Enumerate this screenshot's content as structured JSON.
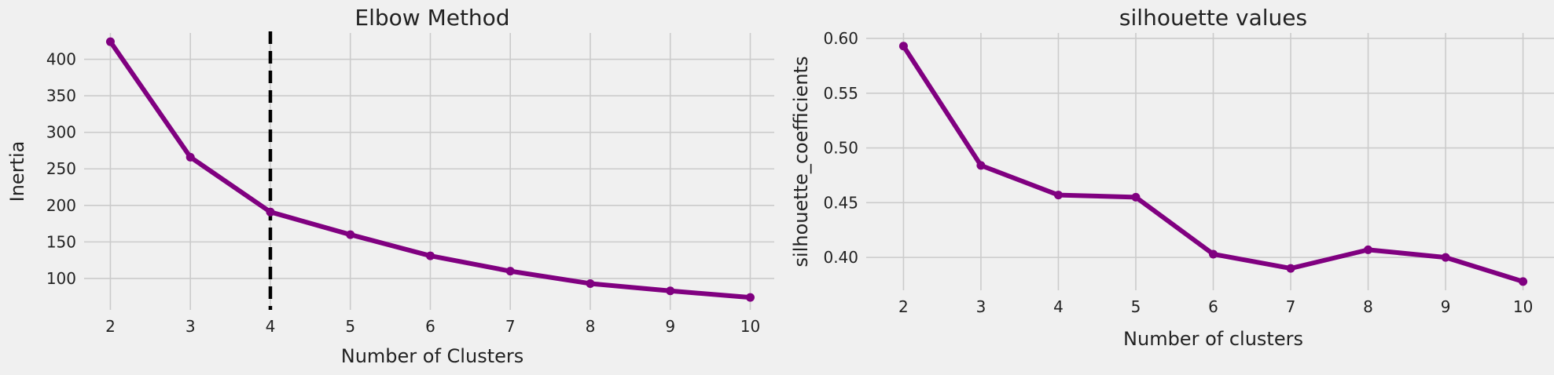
{
  "colors": {
    "background": "#f0f0f0",
    "grid": "#cbcbcb",
    "series": "#800080",
    "vline": "#000000",
    "text": "#222222"
  },
  "chart_data": [
    {
      "type": "line",
      "title": "Elbow Method",
      "xlabel": "Number of Clusters",
      "ylabel": "Inertia",
      "x": [
        2,
        3,
        4,
        5,
        6,
        7,
        8,
        9,
        10
      ],
      "series": [
        {
          "values": [
            424,
            266,
            191,
            160,
            131,
            110,
            93,
            83,
            74
          ]
        }
      ],
      "xlim": [
        1.75,
        10.3
      ],
      "ylim": [
        57,
        436
      ],
      "xticks": [
        "2",
        "3",
        "4",
        "5",
        "6",
        "7",
        "8",
        "9",
        "10"
      ],
      "yticks": [
        "100",
        "150",
        "200",
        "250",
        "300",
        "350",
        "400"
      ],
      "annotations": [
        {
          "type": "vline",
          "x": 4,
          "style": "dashed"
        }
      ],
      "grid": true,
      "legend": "none"
    },
    {
      "type": "line",
      "title": "silhouette values",
      "xlabel": "Number of clusters",
      "ylabel": "silhouette_coefficients",
      "x": [
        2,
        3,
        4,
        5,
        6,
        7,
        8,
        9,
        10
      ],
      "series": [
        {
          "values": [
            0.593,
            0.484,
            0.457,
            0.455,
            0.403,
            0.39,
            0.407,
            0.4,
            0.378
          ]
        }
      ],
      "xlim": [
        1.6,
        10.4
      ],
      "ylim": [
        0.37,
        0.605
      ],
      "xticks": [
        "2",
        "3",
        "4",
        "5",
        "6",
        "7",
        "8",
        "9",
        "10"
      ],
      "yticks": [
        "0.40",
        "0.45",
        "0.50",
        "0.55",
        "0.60"
      ],
      "grid": true,
      "legend": "none"
    }
  ]
}
